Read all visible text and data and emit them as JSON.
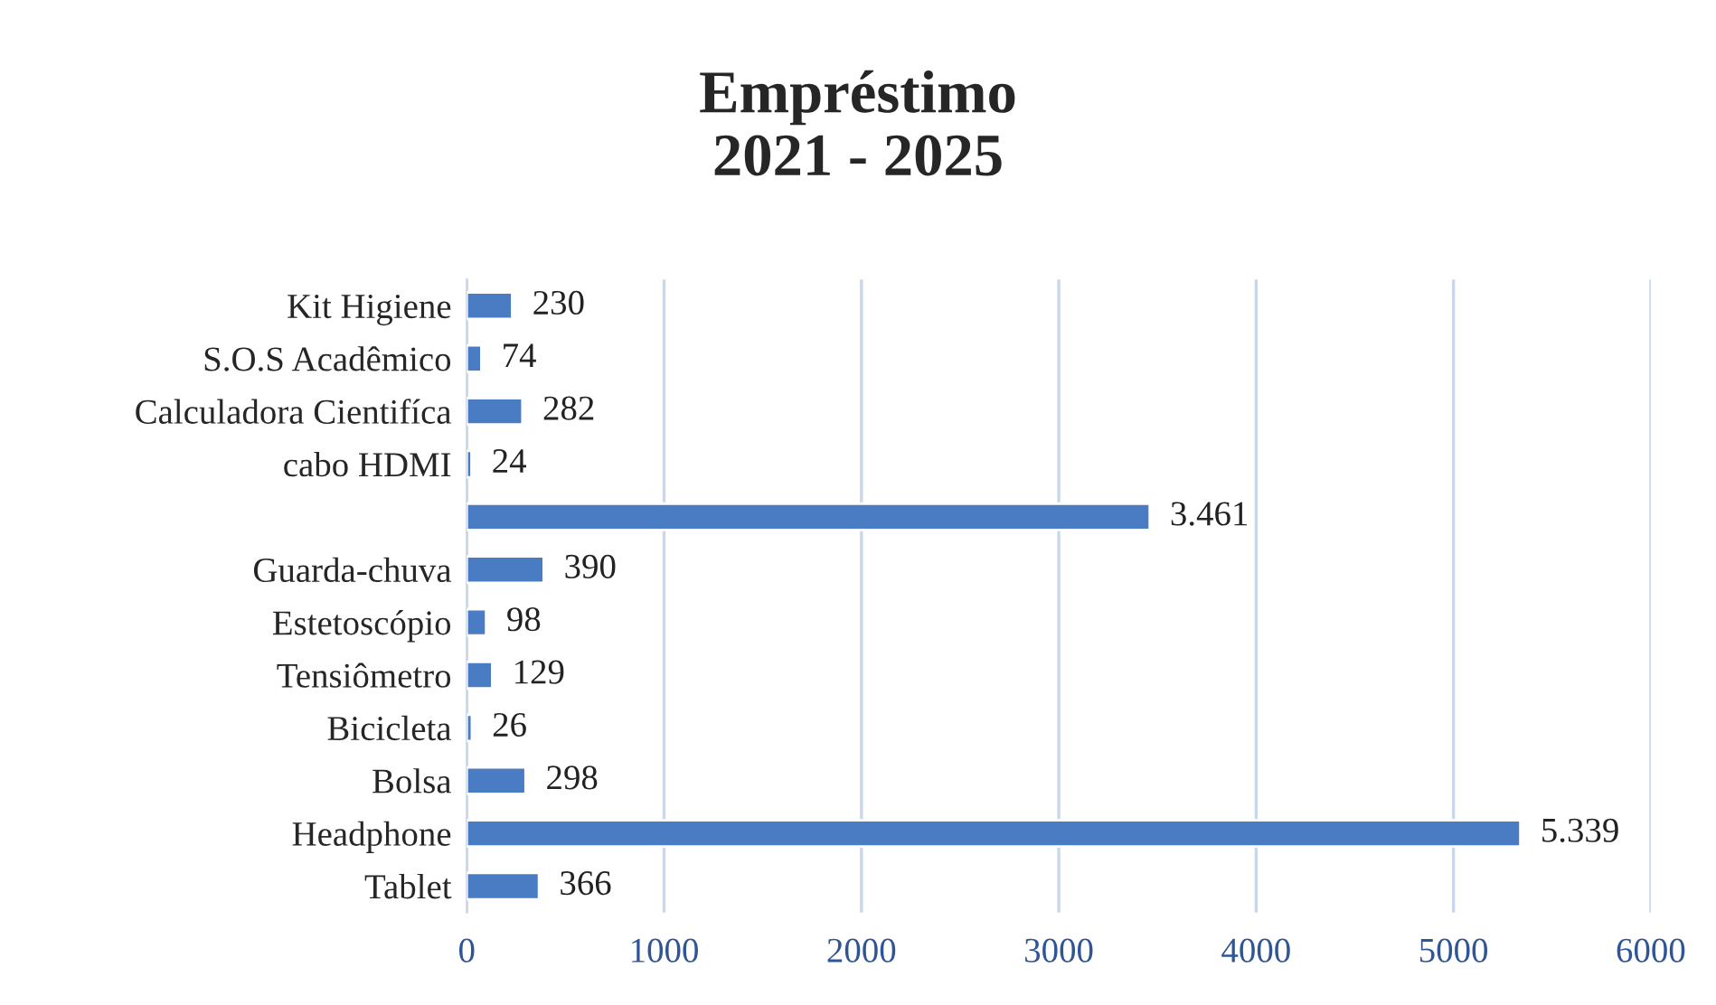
{
  "chart_data": {
    "type": "bar",
    "orientation": "horizontal",
    "title": "Empréstimo\n2021 - 2025",
    "categories": [
      "Kit Higiene",
      "S.O.S Acadêmico",
      "Calculadora Cientifíca",
      "cabo HDMI",
      null,
      "Guarda-chuva",
      "Estetoscópio",
      "Tensiômetro",
      "Bicicleta",
      "Bolsa",
      "Headphone",
      "Tablet"
    ],
    "values": [
      230,
      74,
      282,
      24,
      3461,
      390,
      98,
      129,
      26,
      298,
      5339,
      366
    ],
    "value_labels": [
      "230",
      "74",
      "282",
      "24",
      "3.461",
      "390",
      "98",
      "129",
      "26",
      "298",
      "5.339",
      "366"
    ],
    "color": "#4a7cc4",
    "xlim": [
      0,
      6000
    ],
    "xticks": [
      0,
      1000,
      2000,
      3000,
      4000,
      5000,
      6000
    ],
    "grid": "x",
    "legend": false
  }
}
